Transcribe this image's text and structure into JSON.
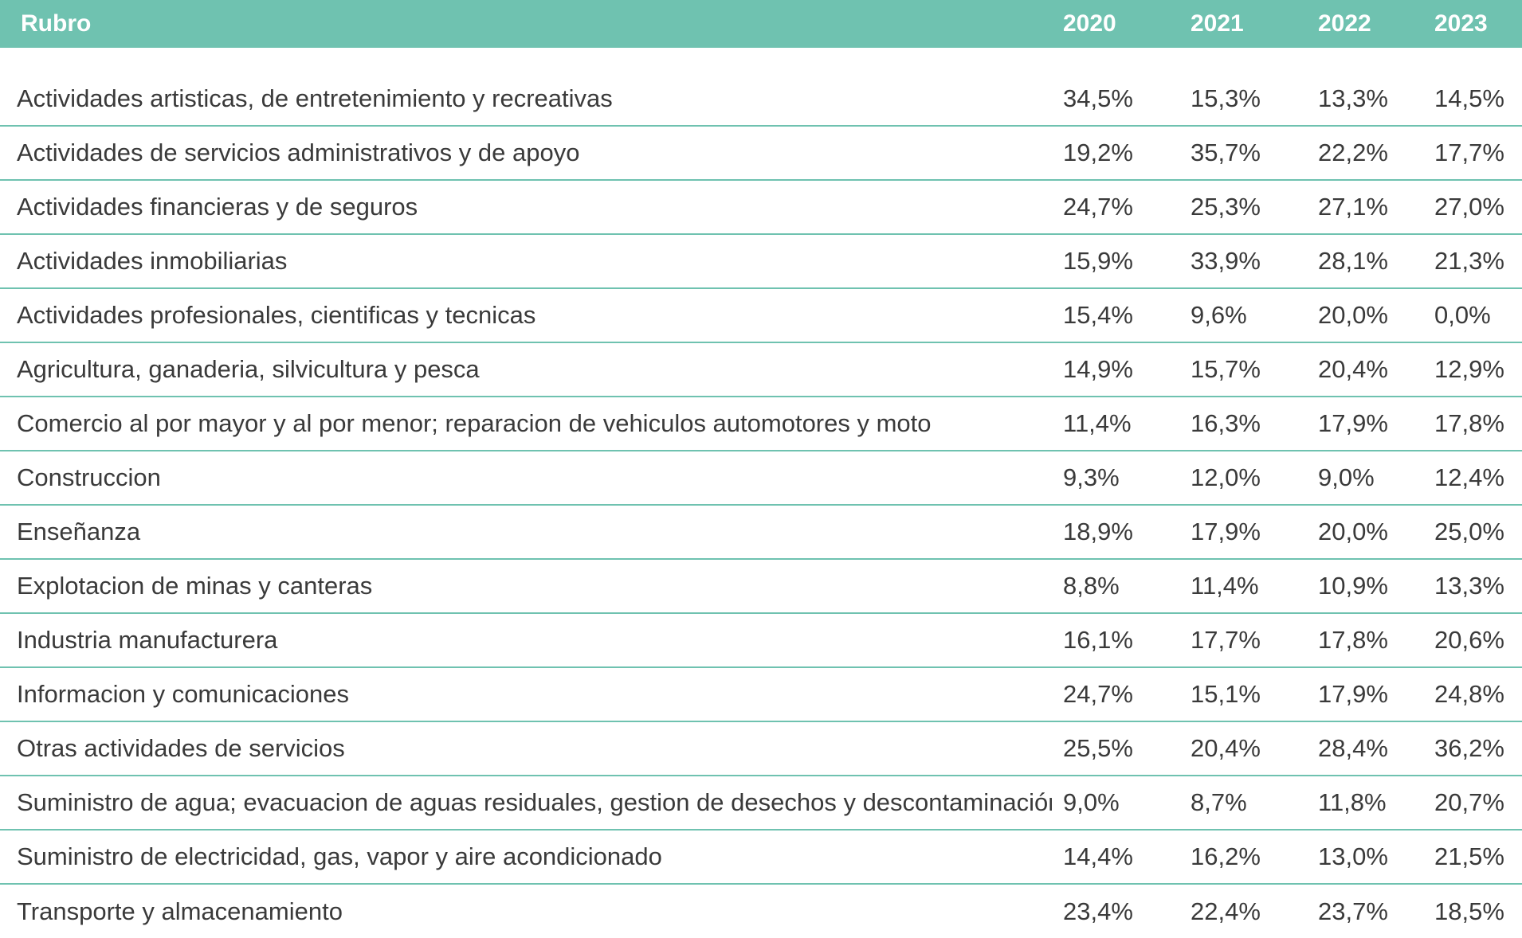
{
  "chart_data": {
    "type": "table",
    "columns": [
      "Rubro",
      "2020",
      "2021",
      "2022",
      "2023"
    ],
    "rows": [
      {
        "rubro": "Actividades artisticas, de entretenimiento y recreativas",
        "values": [
          "34,5%",
          "15,3%",
          "13,3%",
          "14,5%"
        ]
      },
      {
        "rubro": "Actividades de servicios administrativos y de apoyo",
        "values": [
          "19,2%",
          "35,7%",
          "22,2%",
          "17,7%"
        ]
      },
      {
        "rubro": "Actividades financieras y de seguros",
        "values": [
          "24,7%",
          "25,3%",
          "27,1%",
          "27,0%"
        ]
      },
      {
        "rubro": "Actividades inmobiliarias",
        "values": [
          "15,9%",
          "33,9%",
          "28,1%",
          "21,3%"
        ]
      },
      {
        "rubro": "Actividades profesionales, cientificas y tecnicas",
        "values": [
          "15,4%",
          "9,6%",
          "20,0%",
          "0,0%"
        ]
      },
      {
        "rubro": "Agricultura, ganaderia, silvicultura y pesca",
        "values": [
          "14,9%",
          "15,7%",
          "20,4%",
          "12,9%"
        ]
      },
      {
        "rubro": "Comercio al por mayor y al por menor; reparacion de vehiculos automotores y moto",
        "values": [
          "11,4%",
          "16,3%",
          "17,9%",
          "17,8%"
        ]
      },
      {
        "rubro": "Construccion",
        "values": [
          "9,3%",
          "12,0%",
          "9,0%",
          "12,4%"
        ]
      },
      {
        "rubro": "Enseñanza",
        "values": [
          "18,9%",
          "17,9%",
          "20,0%",
          "25,0%"
        ]
      },
      {
        "rubro": "Explotacion de minas y canteras",
        "values": [
          "8,8%",
          "11,4%",
          "10,9%",
          "13,3%"
        ]
      },
      {
        "rubro": "Industria manufacturera",
        "values": [
          "16,1%",
          "17,7%",
          "17,8%",
          "20,6%"
        ]
      },
      {
        "rubro": "Informacion y comunicaciones",
        "values": [
          "24,7%",
          "15,1%",
          "17,9%",
          "24,8%"
        ]
      },
      {
        "rubro": "Otras actividades de servicios",
        "values": [
          "25,5%",
          "20,4%",
          "28,4%",
          "36,2%"
        ]
      },
      {
        "rubro": "Suministro de agua; evacuacion de aguas residuales, gestion de desechos y descontaminación",
        "values": [
          "9,0%",
          "8,7%",
          "11,8%",
          "20,7%"
        ]
      },
      {
        "rubro": "Suministro de electricidad, gas, vapor y aire acondicionado",
        "values": [
          "14,4%",
          "16,2%",
          "13,0%",
          "21,5%"
        ]
      },
      {
        "rubro": "Transporte y almacenamiento",
        "values": [
          "23,4%",
          "22,4%",
          "23,7%",
          "18,5%"
        ]
      }
    ],
    "colors": {
      "header_bg": "#6fc2b0",
      "header_text": "#ffffff",
      "row_rule": "#6fc2b0",
      "body_text": "#3a3a3a"
    }
  }
}
